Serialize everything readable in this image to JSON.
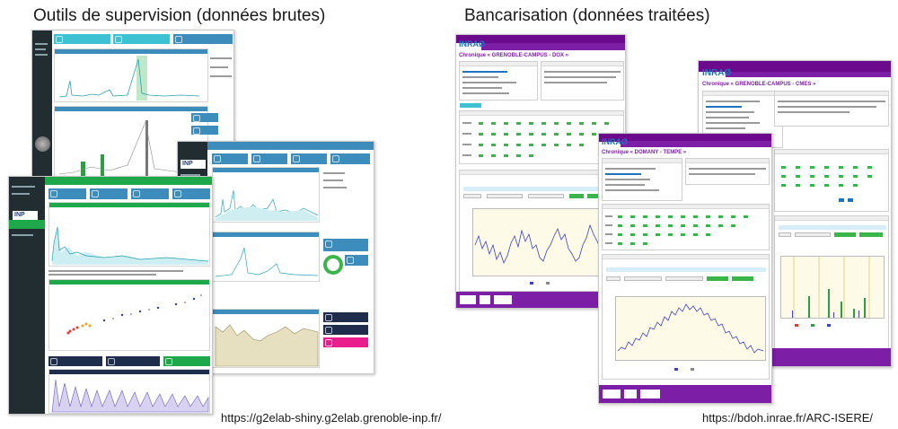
{
  "headings": {
    "left": "Outils de supervision (données brutes)",
    "right": "Bancarisation (données traitées)"
  },
  "urls": {
    "left": "https://g2elab-shiny.g2elab.grenoble-inp.fr/",
    "right": "https://bdoh.inrae.fr/ARC-ISERE/"
  },
  "logos": {
    "inrae": "INRAØ",
    "inp": "INP"
  },
  "chroniques": {
    "a": "Chronique « GRENOBLE-CAMPUS - DOX »",
    "b": "Chronique « GRENOBLE-CAMPUS - CMES »",
    "c": "Chronique « DOMANY - TEMPE »"
  },
  "colors": {
    "shiny_sidebar": "#222d32",
    "shiny_accent_cyan": "#3ec1d3",
    "shiny_accent_blue": "#3c8dbc",
    "shiny_green": "#1ea84a",
    "bdoh_purple": "#7c1ea6",
    "plot_blue": "#3b3fd6"
  }
}
